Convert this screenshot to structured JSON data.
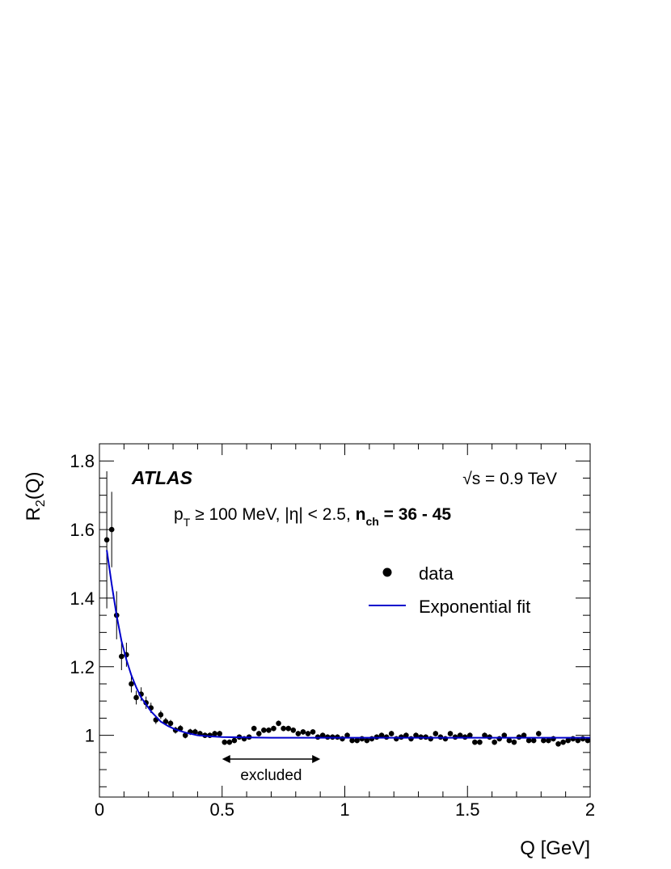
{
  "chart_data": {
    "type": "scatter",
    "xlabel": "Q [GeV]",
    "ylabel_main": "R",
    "ylabel_sub": "2",
    "ylabel_tail": "(Q)",
    "xlim": [
      0,
      2
    ],
    "ylim": [
      0.82,
      1.85
    ],
    "xticks": [
      0,
      0.5,
      1,
      1.5,
      2
    ],
    "xtick_labels": [
      "0",
      "0.5",
      "1",
      "1.5",
      "2"
    ],
    "yticks": [
      1.0,
      1.2,
      1.4,
      1.6,
      1.8
    ],
    "ytick_labels": [
      "1",
      "1.2",
      "1.4",
      "1.6",
      "1.8"
    ],
    "grid": false,
    "legend_position": "upper-right",
    "annotations": {
      "experiment": "ATLAS",
      "energy_sym": "√",
      "energy_rest": "s = 0.9 TeV",
      "cuts_p": "p",
      "cuts_T": "T",
      "cuts_rest": " ≥ 100 MeV, |η| < 2.5, ",
      "nch_n": "n",
      "nch_sub": "ch",
      "nch_rest": " = 36 - 45",
      "excluded": "excluded",
      "excluded_range": [
        0.5,
        0.9
      ]
    },
    "series": [
      {
        "name": "data",
        "color": "#000000",
        "x": [
          0.03,
          0.05,
          0.07,
          0.09,
          0.11,
          0.13,
          0.15,
          0.17,
          0.19,
          0.21,
          0.23,
          0.25,
          0.27,
          0.29,
          0.31,
          0.33,
          0.35,
          0.37,
          0.39,
          0.41,
          0.43,
          0.45,
          0.47,
          0.49,
          0.51,
          0.53,
          0.55,
          0.57,
          0.59,
          0.61,
          0.63,
          0.65,
          0.67,
          0.69,
          0.71,
          0.73,
          0.75,
          0.77,
          0.79,
          0.81,
          0.83,
          0.85,
          0.87,
          0.89,
          0.91,
          0.93,
          0.95,
          0.97,
          0.99,
          1.01,
          1.03,
          1.05,
          1.07,
          1.09,
          1.11,
          1.13,
          1.15,
          1.17,
          1.19,
          1.21,
          1.23,
          1.25,
          1.27,
          1.29,
          1.31,
          1.33,
          1.35,
          1.37,
          1.39,
          1.41,
          1.43,
          1.45,
          1.47,
          1.49,
          1.51,
          1.53,
          1.55,
          1.57,
          1.59,
          1.61,
          1.63,
          1.65,
          1.67,
          1.69,
          1.71,
          1.73,
          1.75,
          1.77,
          1.79,
          1.81,
          1.83,
          1.85,
          1.87,
          1.89,
          1.91,
          1.93,
          1.95,
          1.97,
          1.99
        ],
        "y": [
          1.57,
          1.6,
          1.35,
          1.23,
          1.235,
          1.15,
          1.11,
          1.12,
          1.095,
          1.08,
          1.045,
          1.06,
          1.04,
          1.035,
          1.015,
          1.02,
          1.0,
          1.01,
          1.01,
          1.005,
          1.0,
          1.0,
          1.005,
          1.005,
          0.98,
          0.98,
          0.985,
          0.995,
          0.99,
          0.995,
          1.02,
          1.005,
          1.015,
          1.015,
          1.02,
          1.035,
          1.02,
          1.02,
          1.015,
          1.005,
          1.01,
          1.005,
          1.01,
          0.995,
          1.0,
          0.995,
          0.995,
          0.995,
          0.99,
          1.0,
          0.985,
          0.985,
          0.99,
          0.985,
          0.99,
          0.995,
          1.0,
          0.995,
          1.005,
          0.99,
          0.995,
          1.0,
          0.99,
          1.0,
          0.995,
          0.995,
          0.99,
          1.005,
          0.995,
          0.99,
          1.005,
          0.995,
          1.0,
          0.995,
          1.0,
          0.98,
          0.98,
          1.0,
          0.995,
          0.98,
          0.99,
          1.0,
          0.985,
          0.98,
          0.995,
          1.0,
          0.985,
          0.985,
          1.005,
          0.985,
          0.985,
          0.99,
          0.975,
          0.98,
          0.985,
          0.99,
          0.985,
          0.99,
          0.985
        ],
        "yerr": [
          0.2,
          0.11,
          0.07,
          0.04,
          0.035,
          0.025,
          0.02,
          0.02,
          0.018,
          0.015,
          0.012,
          0.012,
          0.011,
          0.01,
          0.01,
          0.01,
          0.009,
          0.009,
          0.009,
          0.008,
          0.008,
          0.008,
          0.008,
          0.008,
          0.008,
          0.008,
          0.008,
          0.008,
          0.008,
          0.008,
          0.008,
          0.008,
          0.008,
          0.008,
          0.008,
          0.008,
          0.008,
          0.008,
          0.008,
          0.008,
          0.008,
          0.008,
          0.008,
          0.008,
          0.008,
          0.008,
          0.008,
          0.008,
          0.008,
          0.008,
          0.008,
          0.008,
          0.008,
          0.008,
          0.008,
          0.008,
          0.008,
          0.008,
          0.008,
          0.008,
          0.008,
          0.008,
          0.008,
          0.008,
          0.008,
          0.008,
          0.008,
          0.008,
          0.008,
          0.008,
          0.008,
          0.008,
          0.008,
          0.008,
          0.008,
          0.008,
          0.008,
          0.008,
          0.008,
          0.008,
          0.008,
          0.008,
          0.008,
          0.008,
          0.008,
          0.008,
          0.008,
          0.008,
          0.008,
          0.008,
          0.008,
          0.008,
          0.008,
          0.008,
          0.008,
          0.008,
          0.008,
          0.008,
          0.008
        ]
      },
      {
        "name": "Exponential fit",
        "color": "#0000cc",
        "type": "line",
        "x": [
          0.03,
          0.05,
          0.07,
          0.09,
          0.11,
          0.13,
          0.15,
          0.17,
          0.19,
          0.21,
          0.23,
          0.25,
          0.28,
          0.31,
          0.35,
          0.4,
          0.45,
          0.5,
          0.6,
          0.7,
          0.8,
          0.9,
          1.0,
          1.2,
          1.4,
          1.6,
          1.8,
          2.0
        ],
        "y": [
          1.54,
          1.44,
          1.35,
          1.275,
          1.22,
          1.175,
          1.14,
          1.11,
          1.09,
          1.07,
          1.055,
          1.04,
          1.027,
          1.017,
          1.008,
          1.0,
          0.997,
          0.995,
          0.994,
          0.993,
          0.993,
          0.993,
          0.993,
          0.993,
          0.993,
          0.993,
          0.993,
          0.993
        ]
      }
    ]
  }
}
